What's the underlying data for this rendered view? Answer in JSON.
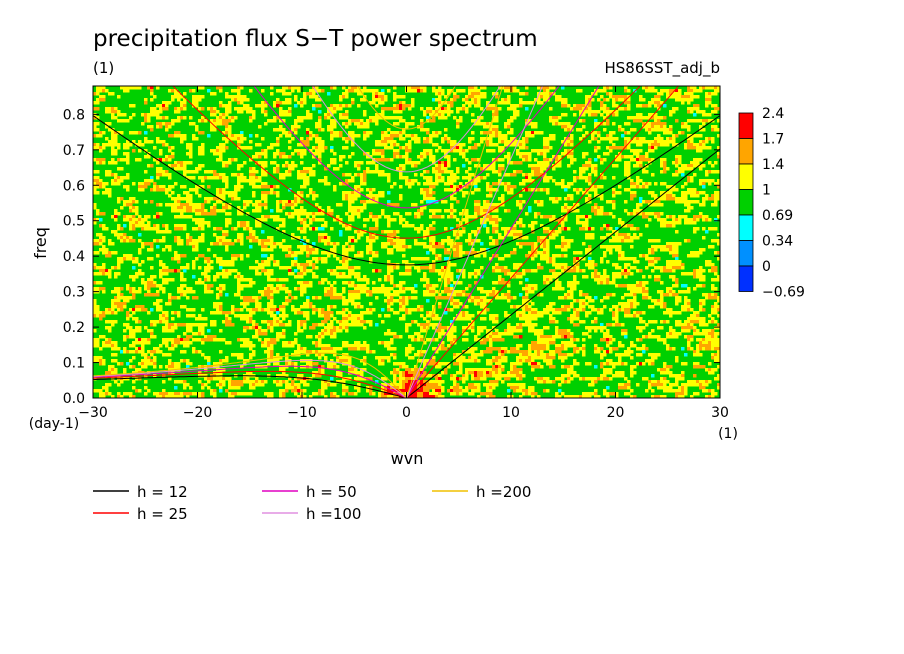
{
  "chart_data": {
    "type": "heatmap",
    "title": "precipitation flux S−T power spectrum",
    "subtitle_left": "(1)",
    "subtitle_right": "HS86SST_adj_b",
    "xlabel": "wvn",
    "ylabel": "freq",
    "x_unit": "(1)",
    "y_unit": "(day-1)",
    "xlim": [
      -30,
      30
    ],
    "ylim": [
      0,
      0.88
    ],
    "x_ticks": [
      -30,
      -20,
      -10,
      0,
      10,
      20,
      30
    ],
    "x_tick_labels": [
      "−30",
      "−20",
      "−10",
      "0",
      "10",
      "20",
      "30"
    ],
    "y_ticks": [
      0,
      0.1,
      0.2,
      0.3,
      0.4,
      0.5,
      0.6,
      0.7,
      0.8
    ],
    "y_tick_labels": [
      "0.0",
      "0.1",
      "0.2",
      "0.3",
      "0.4",
      "0.5",
      "0.6",
      "0.7",
      "0.8"
    ],
    "colorbar": {
      "labels": [
        "2.4",
        "1.7",
        "1.4",
        "1",
        "0.69",
        "0.34",
        "0",
        "−0.69"
      ],
      "colors": [
        "#ff0000",
        "#ffa500",
        "#ffff00",
        "#00d000",
        "#00ffff",
        "#0090ff",
        "#0030ff"
      ]
    },
    "field": {
      "background_level_color": "#00d000",
      "dominant_levels": [
        "0.69-1",
        "1-1.4"
      ],
      "features": [
        "maximum near wvn 0, freq 0",
        "enhanced power along eastward Kelvin-wave band"
      ]
    },
    "dispersion_curves": [
      {
        "name": "h = 12",
        "equivalent_depth": 12,
        "color": "#000000"
      },
      {
        "name": "h = 25",
        "equivalent_depth": 25,
        "color": "#ff0000"
      },
      {
        "name": "h = 50",
        "equivalent_depth": 50,
        "color": "#e000c0"
      },
      {
        "name": "h =100",
        "equivalent_depth": 100,
        "color": "#e090e0"
      },
      {
        "name": "h =200",
        "equivalent_depth": 200,
        "color": "#f0c000"
      }
    ],
    "legend_placement": "bottom"
  }
}
